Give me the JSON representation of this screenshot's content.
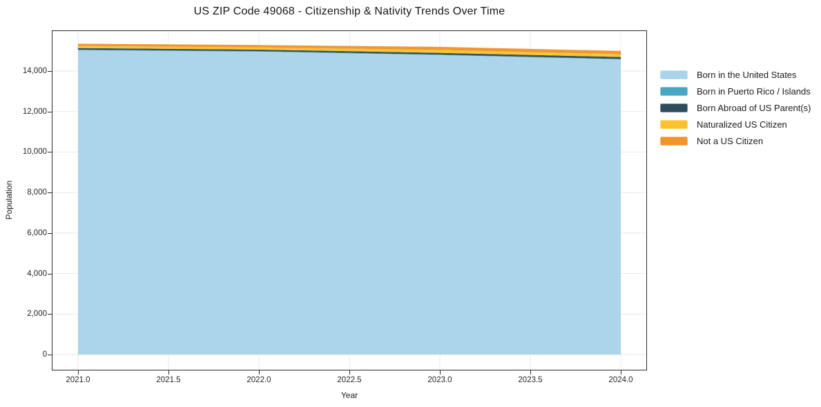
{
  "chart_data": {
    "type": "area",
    "stacked": true,
    "title": "US ZIP Code 49068 - Citizenship & Nativity Trends Over Time",
    "xlabel": "Year",
    "ylabel": "Population",
    "x": [
      2021,
      2022,
      2023,
      2024
    ],
    "series": [
      {
        "name": "Born in the United States",
        "color": "#a9d3e8",
        "values": [
          15030,
          14960,
          14790,
          14575
        ]
      },
      {
        "name": "Born in Puerto Rico / Islands",
        "color": "#45a7c1",
        "values": [
          20,
          20,
          20,
          20
        ]
      },
      {
        "name": "Born Abroad of US Parent(s)",
        "color": "#2b4d5c",
        "values": [
          85,
          80,
          90,
          100
        ]
      },
      {
        "name": "Naturalized US Citizen",
        "color": "#f9c22e",
        "values": [
          105,
          110,
          140,
          135
        ]
      },
      {
        "name": "Not a US Citizen",
        "color": "#f0932a",
        "values": [
          110,
          115,
          155,
          165
        ]
      }
    ],
    "xticks": {
      "values": [
        2021.0,
        2021.5,
        2022.0,
        2022.5,
        2023.0,
        2023.5,
        2024.0
      ],
      "labels": [
        "2021.0",
        "2021.5",
        "2022.0",
        "2022.5",
        "2023.0",
        "2023.5",
        "2024.0"
      ]
    },
    "yticks": {
      "values": [
        0,
        2000,
        4000,
        6000,
        8000,
        10000,
        12000,
        14000
      ],
      "labels": [
        "0",
        "2,000",
        "4,000",
        "6,000",
        "8,000",
        "10,000",
        "12,000",
        "14,000"
      ]
    },
    "xlim": [
      2020.855,
      2024.145
    ],
    "ylim": [
      -785,
      16010
    ],
    "grid": true,
    "grid_color": "#e9e9ef",
    "axis_color": "#2b2b2b",
    "legend_position": "right"
  }
}
